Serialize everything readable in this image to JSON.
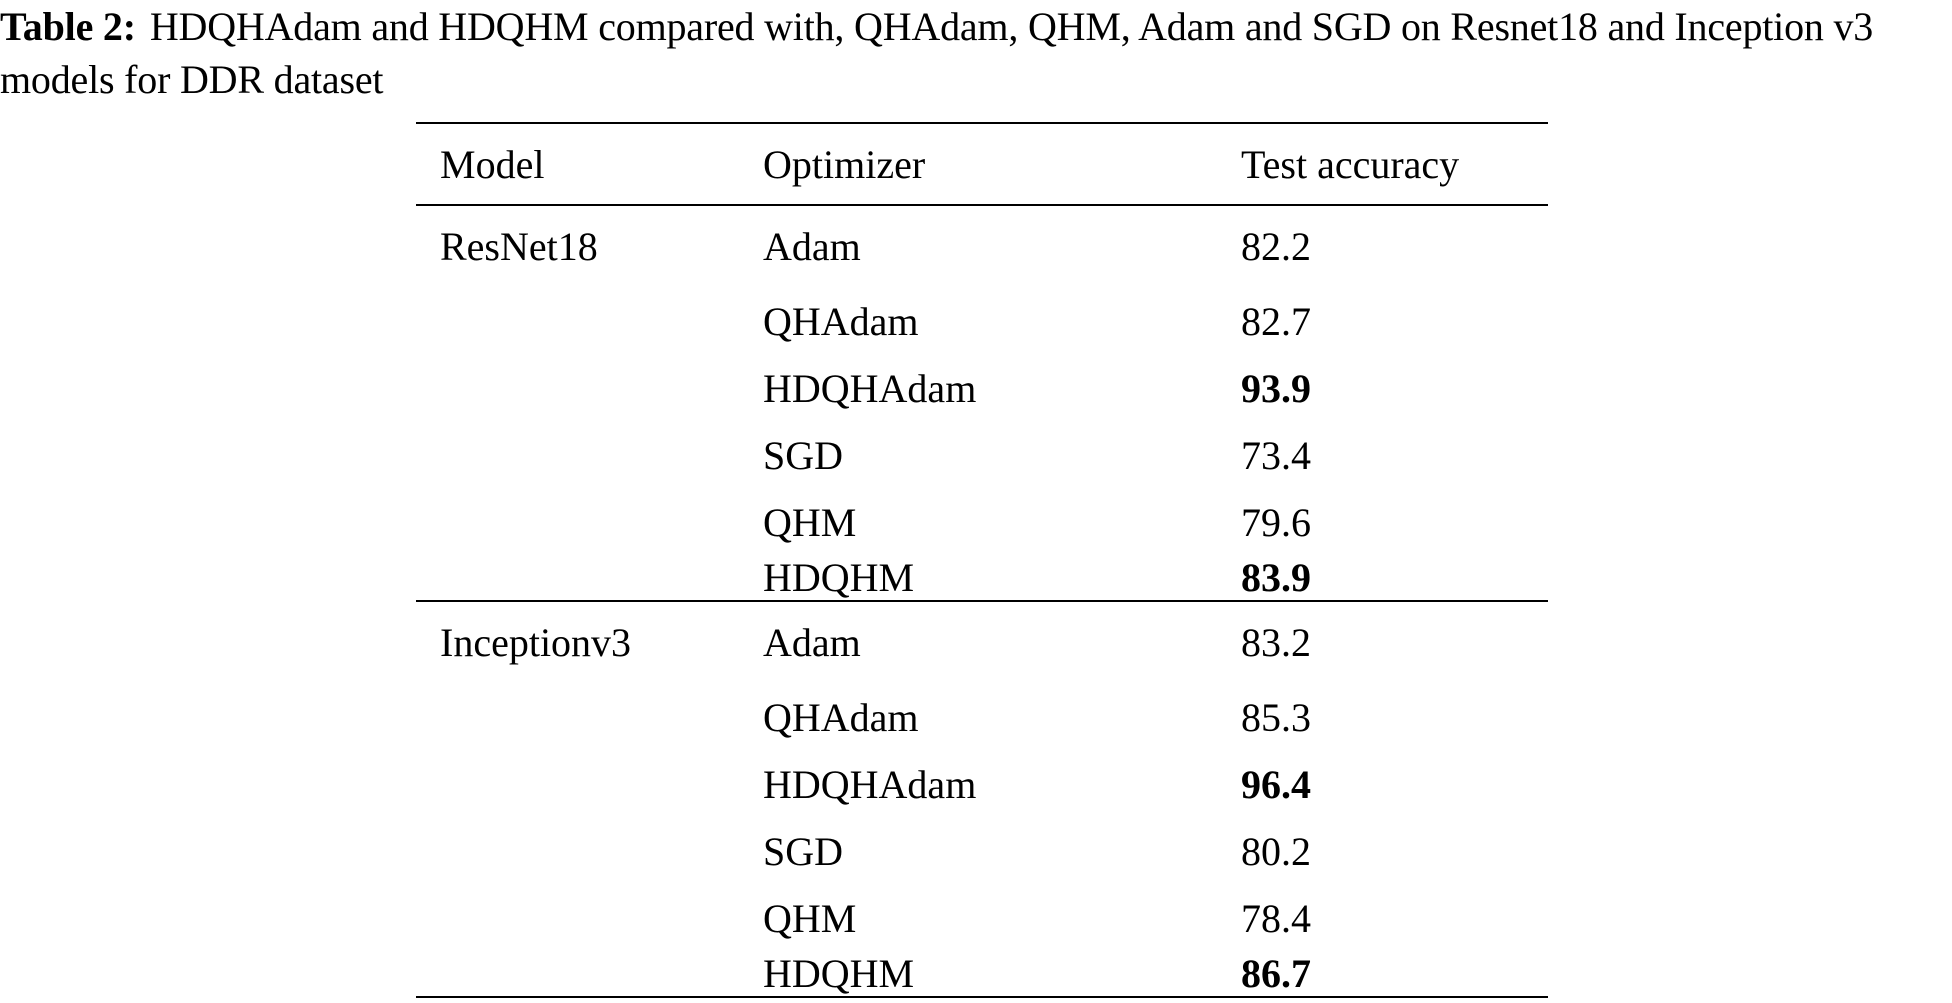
{
  "caption": {
    "label": "Table 2:",
    "text": "HDQHAdam and HDQHM compared with, QHAdam, QHM, Adam and SGD on Resnet18 and Inception v3 models for DDR dataset"
  },
  "table": {
    "headers": [
      "Model",
      "Optimizer",
      "Test accuracy"
    ],
    "groups": [
      {
        "model": "ResNet18",
        "rows": [
          {
            "optimizer": "Adam",
            "accuracy": "82.2",
            "bold": false
          },
          {
            "optimizer": "QHAdam",
            "accuracy": "82.7",
            "bold": false
          },
          {
            "optimizer": "HDQHAdam",
            "accuracy": "93.9",
            "bold": true
          },
          {
            "optimizer": "SGD",
            "accuracy": "73.4",
            "bold": false
          },
          {
            "optimizer": "QHM",
            "accuracy": "79.6",
            "bold": false
          },
          {
            "optimizer": "HDQHM",
            "accuracy": "83.9",
            "bold": true
          }
        ]
      },
      {
        "model": "Inceptionv3",
        "rows": [
          {
            "optimizer": "Adam",
            "accuracy": "83.2",
            "bold": false
          },
          {
            "optimizer": "QHAdam",
            "accuracy": "85.3",
            "bold": false
          },
          {
            "optimizer": "HDQHAdam",
            "accuracy": "96.4",
            "bold": true
          },
          {
            "optimizer": "SGD",
            "accuracy": "80.2",
            "bold": false
          },
          {
            "optimizer": "QHM",
            "accuracy": "78.4",
            "bold": false
          },
          {
            "optimizer": "HDQHM",
            "accuracy": "86.7",
            "bold": true
          }
        ]
      }
    ]
  }
}
